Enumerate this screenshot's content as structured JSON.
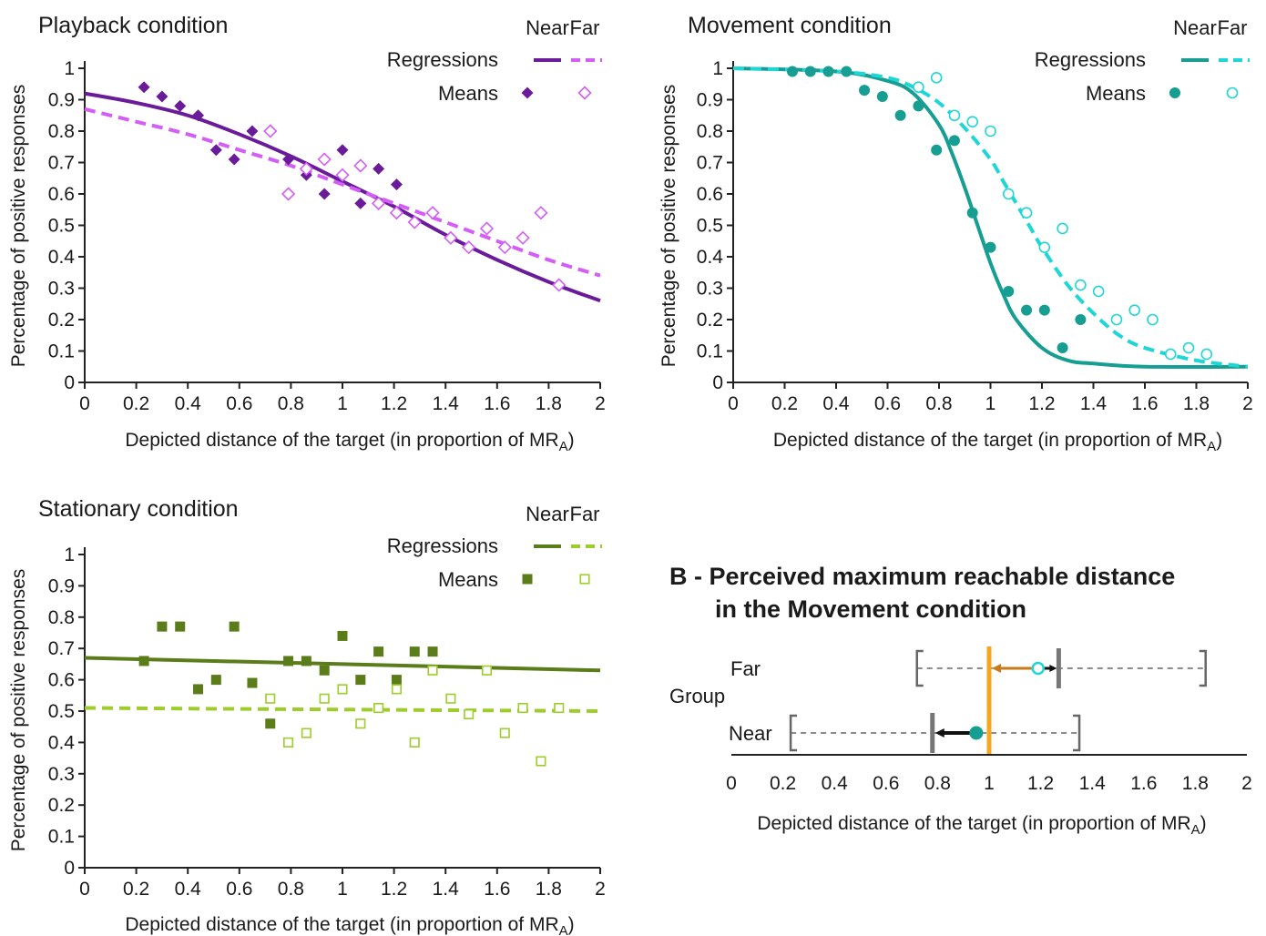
{
  "chart_data": [
    {
      "type": "scatter",
      "title": "Playback condition",
      "xlabel": "Depicted distance of the target (in proportion of MR",
      "xlabel_sub": "A",
      "xlabel_close": ")",
      "ylabel": "Percentage of positive responses",
      "xlim": [
        0,
        2
      ],
      "ylim": [
        0,
        1
      ],
      "xticks": [
        "0",
        "0.2",
        "0.4",
        "0.6",
        "0.8",
        "1",
        "1.2",
        "1.4",
        "1.6",
        "1.8",
        "2"
      ],
      "yticks": [
        "0",
        "0.1",
        "0.2",
        "0.3",
        "0.4",
        "0.5",
        "0.6",
        "0.7",
        "0.8",
        "0.9",
        "1"
      ],
      "legend": {
        "position": "top-right",
        "near": "Near",
        "far": "Far",
        "regressions": "Regressions",
        "means": "Means"
      },
      "near_color": "#6a1b9a",
      "far_color": "#d45ef5",
      "marker": "diamond",
      "series": [
        {
          "group": "near",
          "kind": "means",
          "x": [
            0.23,
            0.3,
            0.37,
            0.44,
            0.51,
            0.58,
            0.65,
            0.79,
            0.86,
            0.93,
            1.0,
            1.07,
            1.14,
            1.21
          ],
          "y": [
            0.94,
            0.91,
            0.88,
            0.85,
            0.74,
            0.71,
            0.8,
            0.71,
            0.66,
            0.6,
            0.74,
            0.57,
            0.68,
            0.63
          ]
        },
        {
          "group": "far",
          "kind": "means",
          "x": [
            0.72,
            0.79,
            0.86,
            0.93,
            1.0,
            1.07,
            1.14,
            1.21,
            1.28,
            1.35,
            1.42,
            1.49,
            1.56,
            1.63,
            1.7,
            1.77,
            1.84
          ],
          "y": [
            0.8,
            0.6,
            0.68,
            0.71,
            0.66,
            0.69,
            0.57,
            0.54,
            0.51,
            0.54,
            0.46,
            0.43,
            0.49,
            0.43,
            0.46,
            0.54,
            0.31
          ]
        },
        {
          "group": "near",
          "kind": "regression",
          "x": [
            0,
            0.2,
            0.4,
            0.6,
            0.8,
            1.0,
            1.2,
            1.4,
            1.6,
            1.8,
            2.0
          ],
          "y": [
            0.92,
            0.89,
            0.85,
            0.79,
            0.72,
            0.64,
            0.56,
            0.47,
            0.39,
            0.32,
            0.26
          ]
        },
        {
          "group": "far",
          "kind": "regression",
          "x": [
            0,
            0.2,
            0.4,
            0.6,
            0.8,
            1.0,
            1.2,
            1.4,
            1.6,
            1.8,
            2.0
          ],
          "y": [
            0.87,
            0.83,
            0.79,
            0.74,
            0.69,
            0.63,
            0.57,
            0.51,
            0.45,
            0.39,
            0.34
          ]
        }
      ]
    },
    {
      "type": "scatter",
      "title": "Movement condition",
      "xlabel": "Depicted distance of the target (in proportion of MR",
      "xlabel_sub": "A",
      "xlabel_close": ")",
      "ylabel": "Percentage of positive responses",
      "xlim": [
        0,
        2
      ],
      "ylim": [
        0,
        1
      ],
      "xticks": [
        "0",
        "0.2",
        "0.4",
        "0.6",
        "0.8",
        "1",
        "1.2",
        "1.4",
        "1.6",
        "1.8",
        "2"
      ],
      "yticks": [
        "0",
        "0.1",
        "0.2",
        "0.3",
        "0.4",
        "0.5",
        "0.6",
        "0.7",
        "0.8",
        "0.9",
        "1"
      ],
      "legend": {
        "position": "top-right",
        "near": "Near",
        "far": "Far",
        "regressions": "Regressions",
        "means": "Means"
      },
      "near_color": "#179e93",
      "far_color": "#1fd6d6",
      "marker": "circle",
      "series": [
        {
          "group": "near",
          "kind": "means",
          "x": [
            0.23,
            0.3,
            0.37,
            0.44,
            0.51,
            0.58,
            0.65,
            0.72,
            0.79,
            0.86,
            0.93,
            1.0,
            1.07,
            1.14,
            1.21,
            1.28,
            1.35
          ],
          "y": [
            0.99,
            0.99,
            0.99,
            0.99,
            0.93,
            0.91,
            0.85,
            0.88,
            0.74,
            0.77,
            0.54,
            0.43,
            0.29,
            0.23,
            0.23,
            0.11,
            0.2
          ]
        },
        {
          "group": "far",
          "kind": "means",
          "x": [
            0.72,
            0.79,
            0.86,
            0.93,
            1.0,
            1.07,
            1.14,
            1.21,
            1.28,
            1.35,
            1.42,
            1.49,
            1.56,
            1.63,
            1.7,
            1.77,
            1.84
          ],
          "y": [
            0.94,
            0.97,
            0.85,
            0.83,
            0.8,
            0.6,
            0.54,
            0.43,
            0.49,
            0.31,
            0.29,
            0.2,
            0.23,
            0.2,
            0.09,
            0.11,
            0.09
          ]
        },
        {
          "group": "near",
          "kind": "regression",
          "x": [
            0,
            0.4,
            0.6,
            0.7,
            0.8,
            0.85,
            0.9,
            0.95,
            1.0,
            1.05,
            1.1,
            1.2,
            1.3,
            1.4,
            1.6,
            2.0
          ],
          "y": [
            1.0,
            0.99,
            0.96,
            0.92,
            0.82,
            0.73,
            0.62,
            0.5,
            0.38,
            0.28,
            0.2,
            0.11,
            0.07,
            0.06,
            0.05,
            0.05
          ]
        },
        {
          "group": "far",
          "kind": "regression",
          "x": [
            0,
            0.4,
            0.6,
            0.7,
            0.8,
            0.9,
            1.0,
            1.05,
            1.1,
            1.15,
            1.2,
            1.3,
            1.4,
            1.5,
            1.6,
            1.8,
            2.0
          ],
          "y": [
            1.0,
            0.99,
            0.97,
            0.94,
            0.89,
            0.81,
            0.71,
            0.64,
            0.57,
            0.5,
            0.43,
            0.31,
            0.22,
            0.15,
            0.11,
            0.07,
            0.05
          ]
        }
      ]
    },
    {
      "type": "scatter",
      "title": "Stationary condition",
      "xlabel": "Depicted distance of the target (in proportion of MR",
      "xlabel_sub": "A",
      "xlabel_close": ")",
      "ylabel": "Percentage of positive responses",
      "xlim": [
        0,
        2
      ],
      "ylim": [
        0,
        1
      ],
      "xticks": [
        "0",
        "0.2",
        "0.4",
        "0.6",
        "0.8",
        "1",
        "1.2",
        "1.4",
        "1.6",
        "1.8",
        "2"
      ],
      "yticks": [
        "0",
        "0.1",
        "0.2",
        "0.3",
        "0.4",
        "0.5",
        "0.6",
        "0.7",
        "0.8",
        "0.9",
        "1"
      ],
      "legend": {
        "position": "top-right",
        "near": "Near",
        "far": "Far",
        "regressions": "Regressions",
        "means": "Means"
      },
      "near_color": "#5a7d1a",
      "far_color": "#9ccd2a",
      "marker": "square",
      "series": [
        {
          "group": "near",
          "kind": "means",
          "x": [
            0.23,
            0.3,
            0.37,
            0.44,
            0.51,
            0.58,
            0.65,
            0.72,
            0.79,
            0.86,
            0.93,
            1.0,
            1.07,
            1.14,
            1.21,
            1.28,
            1.35
          ],
          "y": [
            0.66,
            0.77,
            0.77,
            0.57,
            0.6,
            0.77,
            0.59,
            0.46,
            0.66,
            0.66,
            0.63,
            0.74,
            0.6,
            0.69,
            0.6,
            0.69,
            0.69
          ]
        },
        {
          "group": "far",
          "kind": "means",
          "x": [
            0.72,
            0.79,
            0.86,
            0.93,
            1.0,
            1.07,
            1.14,
            1.21,
            1.28,
            1.35,
            1.42,
            1.49,
            1.56,
            1.63,
            1.7,
            1.77,
            1.84
          ],
          "y": [
            0.54,
            0.4,
            0.43,
            0.54,
            0.57,
            0.46,
            0.51,
            0.57,
            0.4,
            0.63,
            0.54,
            0.49,
            0.63,
            0.43,
            0.51,
            0.34,
            0.51
          ]
        },
        {
          "group": "near",
          "kind": "regression",
          "x": [
            0,
            2
          ],
          "y": [
            0.67,
            0.63
          ]
        },
        {
          "group": "far",
          "kind": "regression",
          "x": [
            0,
            2
          ],
          "y": [
            0.51,
            0.5
          ]
        }
      ]
    }
  ],
  "panel_b": {
    "title_line1": "B - Perceived maximum reachable distance",
    "title_line2": "in the Movement condition",
    "axis_label": "Group",
    "xlabel": "Depicted distance of the target (in proportion of MR",
    "xlabel_sub": "A",
    "xlabel_close": ")",
    "xlim": [
      0,
      2
    ],
    "xticks": [
      "0",
      "0.2",
      "0.4",
      "0.6",
      "0.8",
      "1",
      "1.2",
      "1.4",
      "1.6",
      "1.8",
      "2"
    ],
    "reference_x": 1.0,
    "reference_color": "#f5a623",
    "groups": [
      {
        "label": "Far",
        "range": [
          0.72,
          1.84
        ],
        "mean": 1.19,
        "boundary": 1.27,
        "arrow_color": "#c9791a",
        "mean_color": "#1fd6d6",
        "mean_filled": false
      },
      {
        "label": "Near",
        "range": [
          0.23,
          1.35
        ],
        "mean": 0.95,
        "boundary": 0.78,
        "arrow_color": "#111111",
        "mean_color": "#179e93",
        "mean_filled": true
      }
    ]
  }
}
